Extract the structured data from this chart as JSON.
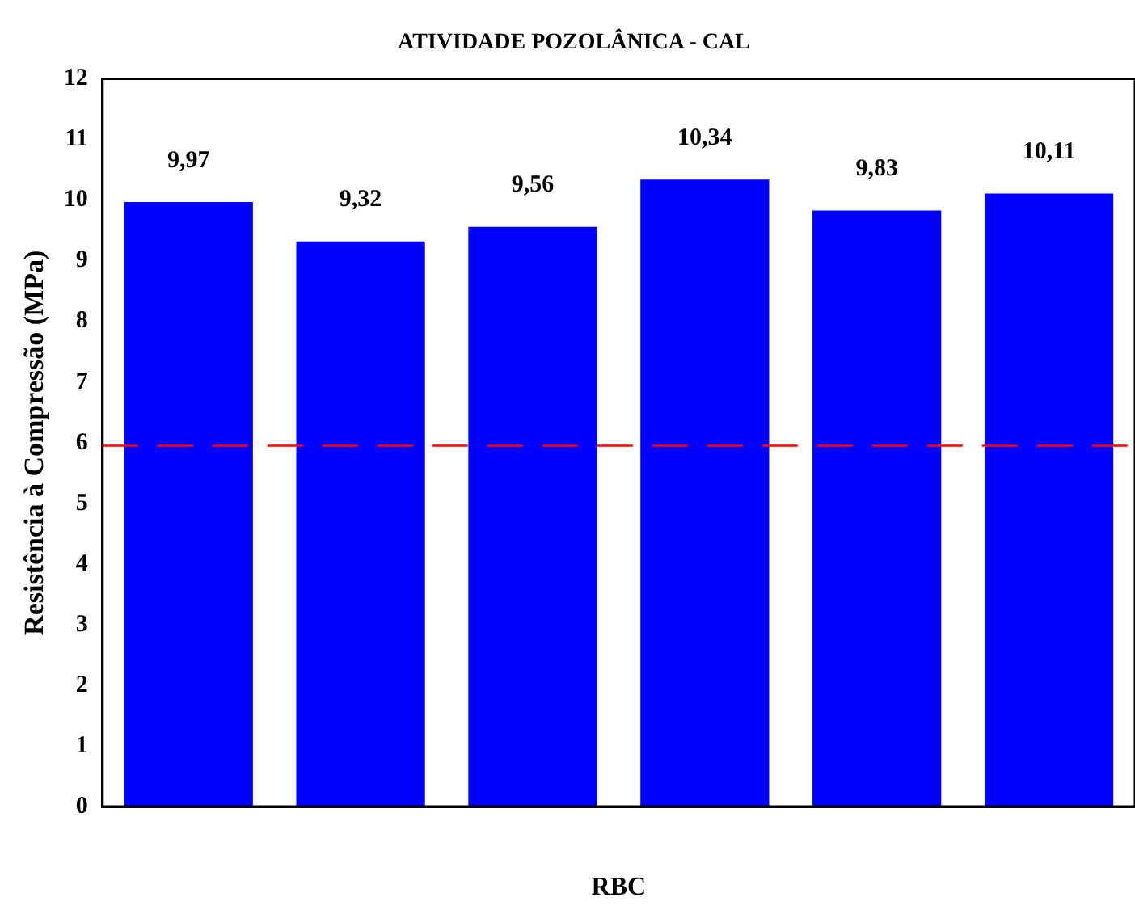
{
  "chart_data": {
    "type": "bar",
    "title": "ATIVIDADE POZOLÂNICA - CAL",
    "xlabel": "RBC",
    "ylabel": "Resistência à Compressão (MPa)",
    "categories": [
      null,
      null,
      null,
      null,
      null,
      null
    ],
    "values": [
      9.97,
      9.32,
      9.56,
      10.34,
      9.83,
      10.11
    ],
    "value_labels": [
      "9,97",
      "9,32",
      "9,56",
      "10,34",
      "9,83",
      "10,11"
    ],
    "color": "#0000ff",
    "ylim": [
      0,
      12
    ],
    "yticks": [
      0,
      1,
      2,
      3,
      4,
      5,
      6,
      7,
      8,
      9,
      10,
      11,
      12
    ],
    "ref_lines": [
      {
        "axis": "y",
        "value": 5.95,
        "color": "#ff0000",
        "line_style": "dashed"
      }
    ],
    "grid": false,
    "legend": false
  }
}
